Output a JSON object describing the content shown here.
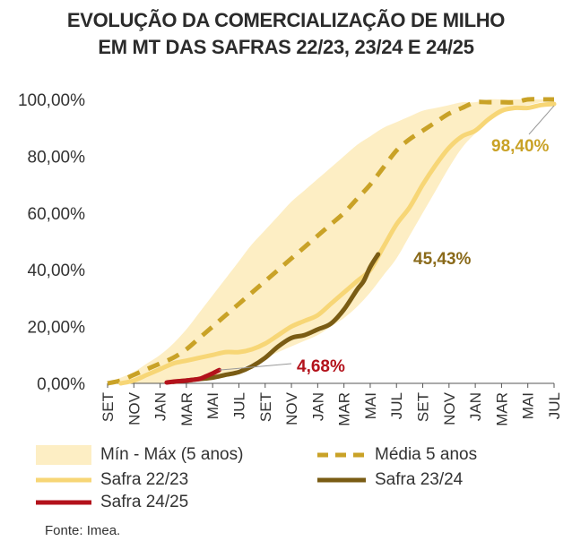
{
  "title": {
    "line1": "EVOLUÇÃO DA COMERCIALIZAÇÃO DE MILHO",
    "line2": "EM MT DAS SAFRAS 22/23, 23/24 E 24/25"
  },
  "source": "Fonte: Imea.",
  "colors": {
    "band": "#fdeec4",
    "media": "#c9a227",
    "safra2223": "#f7d676",
    "safra2324": "#7a5c14",
    "safra2425": "#b3121b",
    "axis": "#555555",
    "label_media": "#c9a227",
    "label_2324": "#8a6a1a",
    "label_2425": "#b3121b"
  },
  "chart_data": {
    "type": "line",
    "title": "EVOLUÇÃO DA COMERCIALIZAÇÃO DE MILHO EM MT DAS SAFRAS 22/23, 23/24 E 24/25",
    "y_ticks": [
      "0,00%",
      "20,00%",
      "40,00%",
      "60,00%",
      "80,00%",
      "100,00%"
    ],
    "ylim": [
      0,
      100
    ],
    "x_ticks": [
      "SET",
      "NOV",
      "JAN",
      "MAR",
      "MAI",
      "JUL",
      "SET",
      "NOV",
      "JAN",
      "MAR",
      "MAI",
      "JUL",
      "SET",
      "NOV",
      "JAN",
      "MAR",
      "MAI",
      "JUL"
    ],
    "x_range_months": [
      0,
      34
    ],
    "series": [
      {
        "name": "Mín - Máx (5 anos)",
        "kind": "band",
        "x": [
          0,
          1,
          2,
          3,
          4,
          5,
          6,
          7,
          8,
          9,
          10,
          11,
          12,
          13,
          14,
          15,
          16,
          17,
          18,
          19,
          20,
          21,
          22,
          23,
          24,
          25,
          26,
          27,
          28,
          29,
          30,
          31,
          32,
          33,
          34
        ],
        "low": [
          0,
          0,
          0,
          0,
          0,
          0,
          0,
          1,
          2,
          3,
          5,
          7,
          9,
          11,
          13,
          15,
          17,
          20,
          23,
          27,
          32,
          38,
          44,
          52,
          60,
          68,
          76,
          83,
          88,
          92,
          95,
          97,
          98,
          99,
          100
        ],
        "high": [
          0,
          2,
          4,
          7,
          10,
          14,
          19,
          25,
          31,
          37,
          43,
          49,
          54,
          59,
          64,
          68,
          72,
          76,
          80,
          84,
          87,
          90,
          92,
          94,
          96,
          97,
          98,
          99,
          99,
          100,
          100,
          100,
          100,
          100,
          100
        ]
      },
      {
        "name": "Média 5 anos",
        "kind": "dashed",
        "x": [
          0,
          1,
          2,
          3,
          4,
          5,
          6,
          7,
          8,
          9,
          10,
          11,
          12,
          13,
          14,
          15,
          16,
          17,
          18,
          19,
          20,
          21,
          22,
          23,
          24,
          25,
          26,
          27,
          28,
          29,
          30,
          31,
          32,
          33,
          34
        ],
        "values": [
          0,
          1,
          3,
          5,
          7,
          9,
          12,
          16,
          20,
          24,
          28,
          32,
          36,
          40,
          44,
          48,
          52,
          56,
          60,
          65,
          70,
          76,
          82,
          86,
          89,
          92,
          95,
          97,
          99,
          99,
          99,
          99,
          100,
          100,
          100
        ]
      },
      {
        "name": "Safra 22/23",
        "kind": "solid",
        "x": [
          1,
          2,
          3,
          4,
          5,
          6,
          7,
          8,
          9,
          10,
          11,
          12,
          13,
          14,
          15,
          16,
          17,
          18,
          19,
          20,
          21,
          22,
          23,
          24,
          25,
          26,
          27,
          28,
          29,
          30,
          31,
          32,
          33,
          34
        ],
        "values": [
          0,
          1,
          3,
          5,
          7,
          8,
          9,
          10,
          11,
          11,
          12,
          14,
          17,
          20,
          22,
          24,
          28,
          32,
          36,
          40,
          48,
          56,
          62,
          70,
          77,
          83,
          87,
          89,
          93,
          96,
          97,
          97,
          98,
          98.4
        ]
      },
      {
        "name": "Safra 23/24",
        "kind": "solid",
        "x": [
          5,
          6,
          7,
          8,
          9,
          10,
          11,
          12,
          13,
          14,
          15,
          16,
          17,
          18,
          19,
          19.5,
          20,
          20.6
        ],
        "values": [
          0.5,
          1,
          1.5,
          2,
          3,
          4,
          6,
          9,
          13,
          16,
          17,
          19,
          21,
          26,
          33,
          36,
          41,
          45.43
        ]
      },
      {
        "name": "Safra 24/25",
        "kind": "solid",
        "x": [
          4.5,
          5,
          6,
          7,
          7.5,
          8,
          8.5
        ],
        "values": [
          0.3,
          0.6,
          1,
          1.6,
          2.5,
          3.5,
          4.68
        ]
      }
    ],
    "annotations": [
      {
        "text": "98,40%",
        "series": "Safra 22/23"
      },
      {
        "text": "45,43%",
        "series": "Safra 23/24"
      },
      {
        "text": "4,68%",
        "series": "Safra 24/25"
      }
    ]
  },
  "legend": [
    {
      "label": "Mín - Máx (5 anos)",
      "kind": "band"
    },
    {
      "label": "Média 5 anos",
      "kind": "dashed"
    },
    {
      "label": "Safra 22/23",
      "kind": "solid2223"
    },
    {
      "label": "Safra 23/24",
      "kind": "solid2324"
    },
    {
      "label": "Safra 24/25",
      "kind": "solid2425"
    }
  ]
}
